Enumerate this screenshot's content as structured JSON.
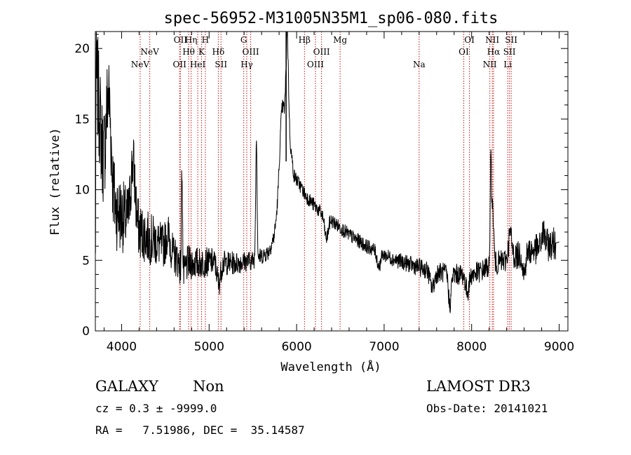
{
  "chart_data": {
    "type": "line",
    "title": "spec-56952-M31005N35M1_sp06-080.fits",
    "xlabel": "Wavelength (Å)",
    "ylabel": "Flux (relative)",
    "xlim": [
      3700,
      9100
    ],
    "ylim": [
      0,
      21.2
    ],
    "xticks": [
      4000,
      5000,
      6000,
      7000,
      8000,
      9000
    ],
    "yticks": [
      0,
      5,
      10,
      15,
      20
    ],
    "x_tick_labels": [
      "4000",
      "5000",
      "6000",
      "7000",
      "8000",
      "9000"
    ],
    "y_tick_labels": [
      "0",
      "5",
      "10",
      "15",
      "20"
    ],
    "x_minor_step": 200,
    "y_minor_step": 1,
    "continuum": [
      [
        3700,
        0.5
      ],
      [
        3705,
        13
      ],
      [
        3740,
        10
      ],
      [
        3800,
        9.5
      ],
      [
        3900,
        8.8
      ],
      [
        4000,
        8.2
      ],
      [
        4100,
        7.6
      ],
      [
        4200,
        7.1
      ],
      [
        4300,
        6.6
      ],
      [
        4400,
        6.3
      ],
      [
        4500,
        5.8
      ],
      [
        4600,
        5.3
      ],
      [
        4700,
        4.9
      ],
      [
        4800,
        4.8
      ],
      [
        4900,
        4.8
      ],
      [
        5000,
        4.9
      ],
      [
        5100,
        4.9
      ],
      [
        5200,
        4.8
      ],
      [
        5300,
        4.8
      ],
      [
        5400,
        4.9
      ],
      [
        5500,
        5.0
      ],
      [
        5600,
        5.3
      ],
      [
        5680,
        5.6
      ],
      [
        5740,
        6.6
      ],
      [
        5800,
        8.5
      ],
      [
        5860,
        12.5
      ],
      [
        5890,
        17.0
      ],
      [
        5920,
        13.5
      ],
      [
        5970,
        11.0
      ],
      [
        6050,
        10.2
      ],
      [
        6100,
        9.6
      ],
      [
        6200,
        8.9
      ],
      [
        6300,
        8.2
      ],
      [
        6400,
        7.8
      ],
      [
        6500,
        7.3
      ],
      [
        6600,
        6.8
      ],
      [
        6700,
        6.4
      ],
      [
        6800,
        6.0
      ],
      [
        6900,
        5.7
      ],
      [
        7000,
        5.4
      ],
      [
        7100,
        5.1
      ],
      [
        7200,
        4.9
      ],
      [
        7300,
        4.7
      ],
      [
        7400,
        4.5
      ],
      [
        7500,
        4.3
      ],
      [
        7600,
        4.2
      ],
      [
        7700,
        4.1
      ],
      [
        7800,
        4.0
      ],
      [
        7900,
        4.0
      ],
      [
        8000,
        4.0
      ],
      [
        8100,
        4.2
      ],
      [
        8200,
        4.6
      ],
      [
        8300,
        4.8
      ],
      [
        8400,
        5.0
      ],
      [
        8500,
        5.3
      ],
      [
        8600,
        5.5
      ],
      [
        8700,
        5.7
      ],
      [
        8800,
        5.9
      ],
      [
        8900,
        6.1
      ],
      [
        9000,
        6.3
      ],
      [
        9002,
        1.0
      ]
    ],
    "features": [
      [
        3730,
        6.0,
        40
      ],
      [
        3850,
        7.5,
        30
      ],
      [
        4130,
        4.5,
        25
      ],
      [
        4530,
        1.2,
        25
      ],
      [
        4690,
        7.8,
        6
      ],
      [
        4700,
        -1.0,
        25
      ],
      [
        5110,
        -1.5,
        20
      ],
      [
        5540,
        8.5,
        8
      ],
      [
        5830,
        5.0,
        30
      ],
      [
        5895,
        4.0,
        14
      ],
      [
        6340,
        -1.5,
        20
      ],
      [
        6940,
        -1.0,
        20
      ],
      [
        7550,
        -1.2,
        25
      ],
      [
        7750,
        -2.2,
        15
      ],
      [
        7950,
        -1.2,
        20
      ],
      [
        8220,
        8.0,
        6
      ],
      [
        8240,
        4.0,
        12
      ],
      [
        8440,
        1.8,
        18
      ],
      [
        8600,
        -1.5,
        15
      ],
      [
        8820,
        1.0,
        20
      ]
    ],
    "spike_x": 5880,
    "noise_amp": [
      [
        3700,
        4.0
      ],
      [
        4100,
        2.2
      ],
      [
        4600,
        1.4
      ],
      [
        5000,
        1.0
      ],
      [
        5600,
        0.6
      ],
      [
        6000,
        0.5
      ],
      [
        7000,
        0.5
      ],
      [
        7600,
        0.7
      ],
      [
        8200,
        0.8
      ],
      [
        9000,
        1.2
      ]
    ],
    "line_markers": [
      {
        "x": 4212,
        "label": "NeV",
        "row": 2
      },
      {
        "x": 4322,
        "label": "NeV",
        "row": 1
      },
      {
        "x": 4663,
        "label": "OII",
        "row": 2
      },
      {
        "x": 4672,
        "label": "OII",
        "row": 0
      },
      {
        "x": 4766,
        "label": "Hθ",
        "row": 1
      },
      {
        "x": 4794,
        "label": "Hη",
        "row": 0
      },
      {
        "x": 4870,
        "label": "HeI",
        "row": 2
      },
      {
        "x": 4914,
        "label": "K",
        "row": 1
      },
      {
        "x": 4957,
        "label": "H",
        "row": 0
      },
      {
        "x": 5105,
        "label": "Hδ",
        "row": 1
      },
      {
        "x": 5136,
        "label": "SII",
        "row": 2
      },
      {
        "x": 5396,
        "label": "G",
        "row": 0
      },
      {
        "x": 5430,
        "label": "Hγ",
        "row": 2
      },
      {
        "x": 5475,
        "label": "OIII",
        "row": 1
      },
      {
        "x": 6090,
        "label": "Hβ",
        "row": 0
      },
      {
        "x": 6215,
        "label": "OIII",
        "row": 2
      },
      {
        "x": 6285,
        "label": "OIII",
        "row": 1
      },
      {
        "x": 6497,
        "label": "Mg",
        "row": 0
      },
      {
        "x": 7400,
        "label": "Na",
        "row": 2
      },
      {
        "x": 7910,
        "label": "OI",
        "row": 1
      },
      {
        "x": 7975,
        "label": "OI",
        "row": 0
      },
      {
        "x": 8208,
        "label": "NII",
        "row": 2
      },
      {
        "x": 8236,
        "label": "NII",
        "row": 0
      },
      {
        "x": 8250,
        "label": "Hα",
        "row": 1
      },
      {
        "x": 8412,
        "label": "Li",
        "row": 2
      },
      {
        "x": 8432,
        "label": "SII",
        "row": 1
      },
      {
        "x": 8452,
        "label": "SII",
        "row": 0
      }
    ]
  },
  "footer": {
    "object_class": "GALAXY",
    "subclass": "Non",
    "cz_line": "cz = 0.3 ± -9999.0",
    "radec_line": "RA =   7.51986, DEC =  35.14587",
    "survey": "LAMOST DR3",
    "obs_date": "Obs-Date: 20141021"
  },
  "colors": {
    "marker_line": "#cc1111",
    "spectrum": "#000000"
  }
}
